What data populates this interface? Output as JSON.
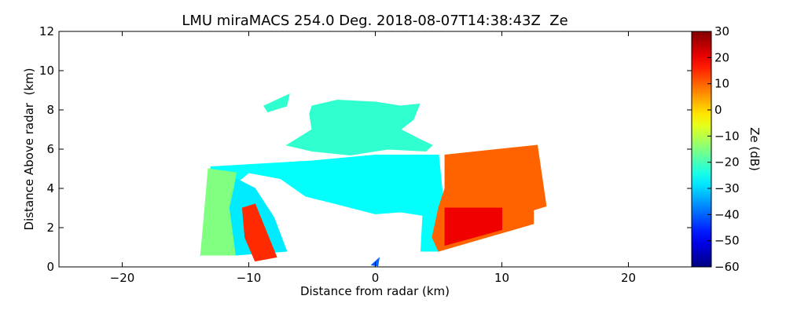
{
  "chart_data": {
    "type": "heatmap",
    "title": "LMU miraMACS 254.0 Deg. 2018-08-07T14:38:43Z  Ze",
    "xlabel": "Distance from radar (km)",
    "ylabel": "Distance Above radar  (km)",
    "colorbar_label": "Ze (dB)",
    "colormap": "jet",
    "xlim": [
      -25,
      25
    ],
    "ylim": [
      0,
      12
    ],
    "xticks": [
      {
        "value": -20,
        "label": "−20"
      },
      {
        "value": -10,
        "label": "−10"
      },
      0,
      10,
      20
    ],
    "yticks": [
      0,
      2,
      4,
      6,
      8,
      10,
      12
    ],
    "clim": [
      -60,
      30
    ],
    "cticks": [
      {
        "value": -60,
        "label": "−60"
      },
      {
        "value": -50,
        "label": "−50"
      },
      {
        "value": -40,
        "label": "−40"
      },
      {
        "value": -30,
        "label": "−30"
      },
      {
        "value": -20,
        "label": "−20"
      },
      {
        "value": -10,
        "label": "−10"
      },
      0,
      10,
      20,
      30
    ],
    "field": [
      {
        "value": -22,
        "points": [
          [
            -5,
            8.2
          ],
          [
            -3,
            8.5
          ],
          [
            0,
            8.4
          ],
          [
            2,
            8.2
          ],
          [
            3.5,
            8.3
          ],
          [
            3,
            7.5
          ],
          [
            2,
            7
          ],
          [
            3.5,
            6.5
          ],
          [
            4.5,
            6.2
          ],
          [
            4,
            5.9
          ],
          [
            1,
            6
          ],
          [
            -2,
            5.7
          ],
          [
            -5,
            5.9
          ],
          [
            -7,
            6.2
          ],
          [
            -5,
            7
          ],
          [
            -5.2,
            7.8
          ]
        ]
      },
      {
        "value": -22,
        "points": [
          [
            -8.8,
            8.2
          ],
          [
            -6.8,
            8.8
          ],
          [
            -7,
            8.2
          ],
          [
            -8.5,
            7.9
          ]
        ]
      },
      {
        "value": -26,
        "points": [
          [
            -13,
            5.1
          ],
          [
            -5,
            5.4
          ],
          [
            0,
            5.7
          ],
          [
            5,
            5.7
          ],
          [
            5.5,
            2.5
          ],
          [
            4,
            2.6
          ],
          [
            2,
            2.8
          ],
          [
            0,
            2.7
          ],
          [
            -3,
            3.2
          ],
          [
            -5.5,
            3.6
          ],
          [
            -7.5,
            4.5
          ],
          [
            -10,
            4.8
          ],
          [
            -11.5,
            4
          ],
          [
            -12,
            2
          ],
          [
            -13.8,
            0.6
          ]
        ]
      },
      {
        "value": -15,
        "points": [
          [
            -13.2,
            5
          ],
          [
            -11,
            4.8
          ],
          [
            -11.5,
            3
          ],
          [
            -11,
            0.6
          ],
          [
            -13.8,
            0.6
          ]
        ]
      },
      {
        "value": -28,
        "points": [
          [
            -11,
            0.6
          ],
          [
            -11.5,
            3
          ],
          [
            -11,
            4.5
          ],
          [
            -9.5,
            4
          ],
          [
            -8,
            2.5
          ],
          [
            -7,
            0.8
          ]
        ]
      },
      {
        "value": 15,
        "points": [
          [
            -10.5,
            3
          ],
          [
            -9.5,
            3.2
          ],
          [
            -7.8,
            0.5
          ],
          [
            -9.5,
            0.3
          ],
          [
            -10.3,
            1.5
          ]
        ]
      },
      {
        "value": -26,
        "points": [
          [
            3.8,
            3.2
          ],
          [
            5.5,
            3.2
          ],
          [
            5,
            0.8
          ],
          [
            3.6,
            0.8
          ]
        ]
      },
      {
        "value": 10,
        "points": [
          [
            5.5,
            5.7
          ],
          [
            12.8,
            6.2
          ],
          [
            13.5,
            3.1
          ],
          [
            12.5,
            2.9
          ],
          [
            12.5,
            2.2
          ],
          [
            5,
            0.8
          ],
          [
            4.5,
            1.5
          ],
          [
            5,
            3
          ],
          [
            5.5,
            4
          ]
        ]
      },
      {
        "value": 20,
        "points": [
          [
            5.5,
            3
          ],
          [
            10,
            3
          ],
          [
            10,
            1.9
          ],
          [
            5.5,
            1.1
          ]
        ]
      },
      {
        "value": -40,
        "points": [
          [
            -0.3,
            0.1
          ],
          [
            0.3,
            0.45
          ],
          [
            0.2,
            0.05
          ]
        ]
      }
    ]
  }
}
